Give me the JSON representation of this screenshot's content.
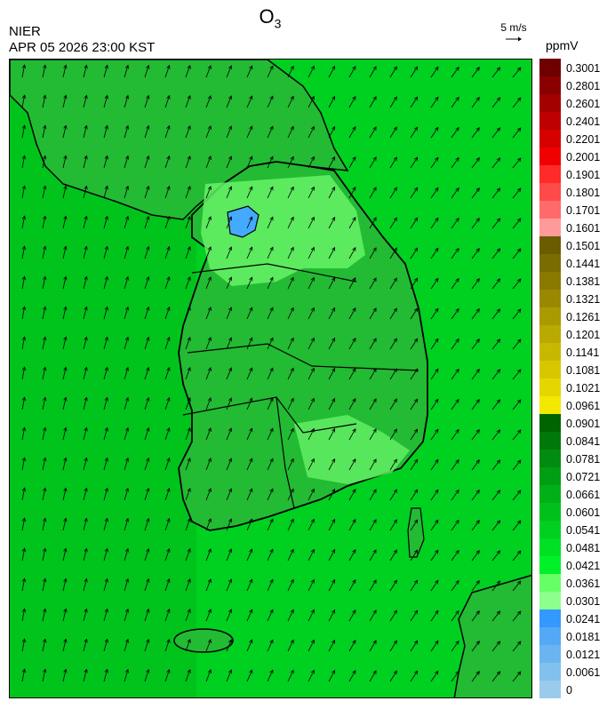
{
  "header": {
    "title_main": "O",
    "title_sub": "3",
    "agency": "NIER",
    "datetime": "APR 05 2026 23:00 KST",
    "wind_scale_label": "5 m/s",
    "unit": "ppmV"
  },
  "legend": {
    "colors": [
      "#6e0000",
      "#8a0000",
      "#a30000",
      "#bd0000",
      "#d60000",
      "#f00000",
      "#ff2a2a",
      "#ff4a4a",
      "#ff6a6a",
      "#ff9a9a",
      "#6b5c00",
      "#7a6c00",
      "#8a7a00",
      "#9a8900",
      "#aa9900",
      "#baa900",
      "#c9b800",
      "#d8c700",
      "#e6d600",
      "#f2e800",
      "#006400",
      "#00780a",
      "#008c10",
      "#009e14",
      "#00b018",
      "#00c01c",
      "#00d020",
      "#00e024",
      "#00f02a",
      "#66ff66",
      "#8cff8c",
      "#3399ff",
      "#55a8f5",
      "#6bb4f2",
      "#82c0ee",
      "#9acbea"
    ],
    "labels": [
      "0.3001",
      "0.2801",
      "0.2601",
      "0.2401",
      "0.2201",
      "0.2001",
      "0.1901",
      "0.1801",
      "0.1701",
      "0.1601",
      "0.1501",
      "0.1441",
      "0.1381",
      "0.1321",
      "0.1261",
      "0.1201",
      "0.1141",
      "0.1081",
      "0.1021",
      "0.0961",
      "0.0901",
      "0.0841",
      "0.0781",
      "0.0721",
      "0.0661",
      "0.0601",
      "0.0541",
      "0.0481",
      "0.0421",
      "0.0361",
      "0.0301",
      "0.0241",
      "0.0181",
      "0.0121",
      "0.0061",
      "0"
    ]
  },
  "map": {
    "field_colors": {
      "sea": "#00d020",
      "sea_west": "#00c41c",
      "land": "#22bb33",
      "high": "#66f266",
      "low": "#44aaff"
    },
    "wind_direction": "north-northeast"
  }
}
